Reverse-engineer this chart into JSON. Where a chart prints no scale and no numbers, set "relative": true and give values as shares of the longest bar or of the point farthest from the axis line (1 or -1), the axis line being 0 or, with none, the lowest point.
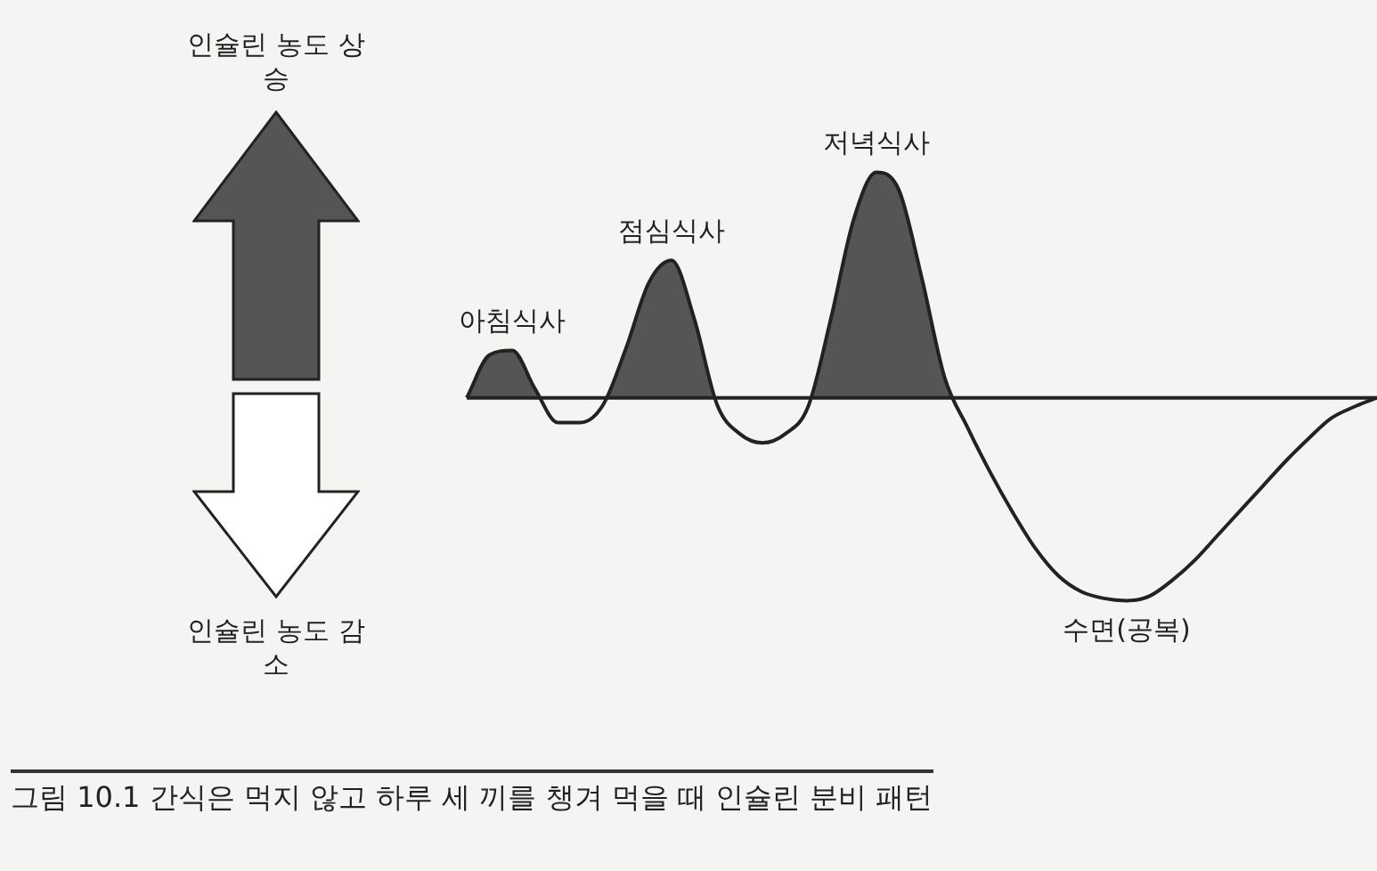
{
  "chart_data": {
    "type": "area",
    "title": "그림 10.1 간식은 먹지 않고 하루 세 끼를 챙겨 먹을 때 인슐린 분비 패턴",
    "relative": true,
    "color": "#555555",
    "categories": [
      null,
      null,
      null,
      null,
      null,
      null,
      null,
      null,
      null,
      null,
      null,
      null,
      null,
      null,
      null,
      null,
      null,
      null,
      null,
      null,
      null,
      null,
      null,
      null,
      null,
      null,
      null,
      null,
      null,
      null,
      null,
      null,
      null,
      null,
      null,
      null,
      null,
      null,
      null,
      null,
      null
    ],
    "values": [
      0,
      0.19,
      0.21,
      0.04,
      -0.11,
      -0.11,
      -0.03,
      0.22,
      0.51,
      0.61,
      0.35,
      -0.03,
      -0.16,
      -0.2,
      -0.16,
      -0.04,
      0.35,
      0.79,
      1,
      0.92,
      0.53,
      0.09,
      -0.13,
      -0.33,
      -0.51,
      -0.67,
      -0.79,
      -0.86,
      -0.89,
      -0.9,
      -0.88,
      -0.81,
      -0.72,
      -0.61,
      -0.5,
      -0.39,
      -0.28,
      -0.18,
      -0.09,
      -0.04,
      0
    ],
    "annotations": [
      "인슐린 농도 상승",
      "인슐린 농도 감소",
      {
        "text": "아침식사",
        "y": 0.21
      },
      {
        "text": "점심식사",
        "y": 0.61
      },
      {
        "text": "저녁식사",
        "y": 1
      },
      {
        "text": "수면(공복)",
        "y": -0.9
      }
    ]
  }
}
